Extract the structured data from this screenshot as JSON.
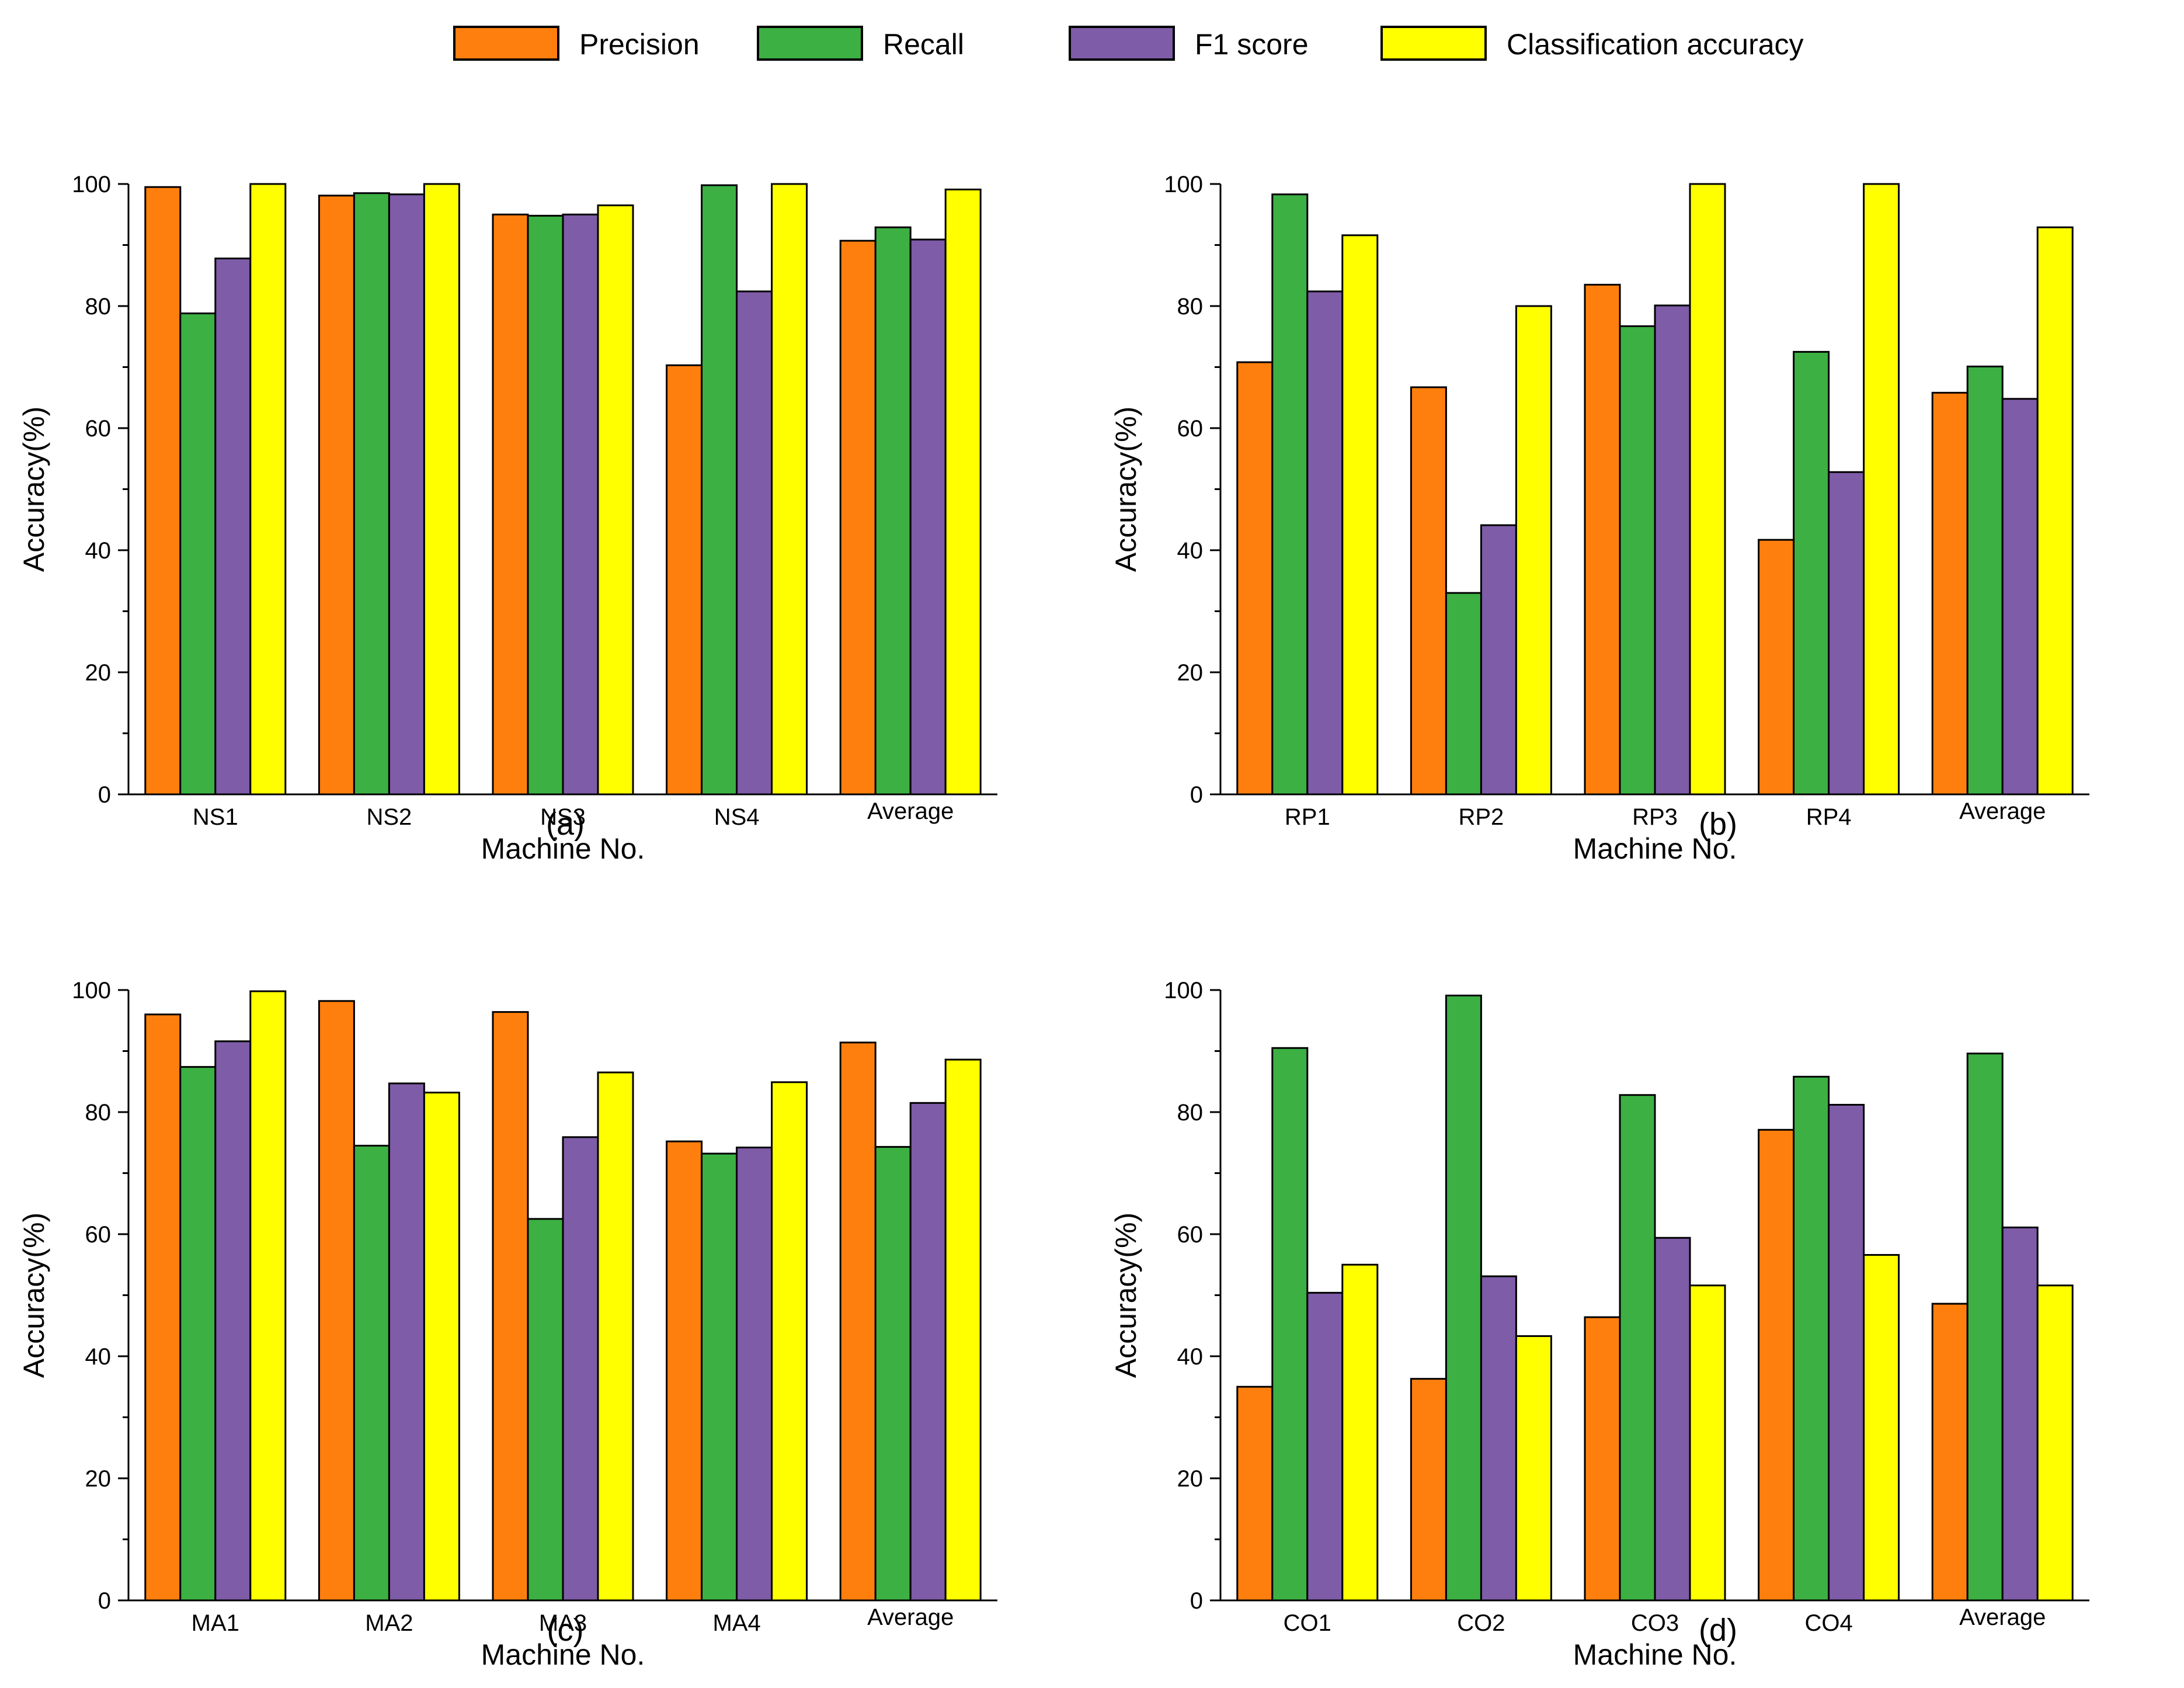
{
  "legend": {
    "items": [
      {
        "label": "Precision",
        "color": "#FF7F0E"
      },
      {
        "label": "Recall",
        "color": "#3CB043"
      },
      {
        "label": "F1 score",
        "color": "#7E5CA8"
      },
      {
        "label": "Classification accuracy",
        "color": "#FFFF00"
      }
    ]
  },
  "chart_data": [
    {
      "type": "bar",
      "caption": "(a)",
      "xlabel": "Machine No.",
      "ylabel": "Accuracy(%)",
      "ylim": [
        0,
        100
      ],
      "yticks": [
        "0",
        "20",
        "40",
        "60",
        "80",
        "100"
      ],
      "categories": [
        "NS1",
        "NS2",
        "NS3",
        "NS4",
        "Average"
      ],
      "series": [
        {
          "name": "Precision",
          "values": [
            99.5,
            98.1,
            95.0,
            70.3,
            90.7
          ]
        },
        {
          "name": "Recall",
          "values": [
            78.8,
            98.5,
            94.8,
            99.8,
            92.9
          ]
        },
        {
          "name": "F1 score",
          "values": [
            87.8,
            98.3,
            95.0,
            82.4,
            90.9
          ]
        },
        {
          "name": "Classification accuracy",
          "values": [
            100.0,
            100.0,
            96.5,
            100.0,
            99.1
          ]
        }
      ]
    },
    {
      "type": "bar",
      "caption": "(b)",
      "xlabel": "Machine No.",
      "ylabel": "Accuracy(%)",
      "ylim": [
        0,
        100
      ],
      "yticks": [
        "0",
        "20",
        "40",
        "60",
        "80",
        "100"
      ],
      "categories": [
        "RP1",
        "RP2",
        "RP3",
        "RP4",
        "Average"
      ],
      "series": [
        {
          "name": "Precision",
          "values": [
            70.8,
            66.7,
            83.5,
            41.7,
            65.8
          ]
        },
        {
          "name": "Recall",
          "values": [
            98.3,
            33.0,
            76.7,
            72.5,
            70.1
          ]
        },
        {
          "name": "F1 score",
          "values": [
            82.4,
            44.1,
            80.1,
            52.8,
            64.8
          ]
        },
        {
          "name": "Classification accuracy",
          "values": [
            91.6,
            80.0,
            100.0,
            100.0,
            92.9
          ]
        }
      ]
    },
    {
      "type": "bar",
      "caption": "(c)",
      "xlabel": "Machine No.",
      "ylabel": "Accuracy(%)",
      "ylim": [
        0,
        100
      ],
      "yticks": [
        "0",
        "20",
        "40",
        "60",
        "80",
        "100"
      ],
      "categories": [
        "MA1",
        "MA2",
        "MA3",
        "MA4",
        "Average"
      ],
      "series": [
        {
          "name": "Precision",
          "values": [
            96.0,
            98.2,
            96.4,
            75.2,
            91.4
          ]
        },
        {
          "name": "Recall",
          "values": [
            87.4,
            74.5,
            62.5,
            73.2,
            74.3
          ]
        },
        {
          "name": "F1 score",
          "values": [
            91.6,
            84.7,
            75.9,
            74.2,
            81.5
          ]
        },
        {
          "name": "Classification accuracy",
          "values": [
            99.8,
            83.2,
            86.5,
            84.9,
            88.6
          ]
        }
      ]
    },
    {
      "type": "bar",
      "caption": "(d)",
      "xlabel": "Machine No.",
      "ylabel": "Accuracy(%)",
      "ylim": [
        0,
        100
      ],
      "yticks": [
        "0",
        "20",
        "40",
        "60",
        "80",
        "100"
      ],
      "categories": [
        "CO1",
        "CO2",
        "CO3",
        "CO4",
        "Average"
      ],
      "series": [
        {
          "name": "Precision",
          "values": [
            35.0,
            36.3,
            46.4,
            77.1,
            48.6
          ]
        },
        {
          "name": "Recall",
          "values": [
            90.5,
            99.1,
            82.8,
            85.8,
            89.6
          ]
        },
        {
          "name": "F1 score",
          "values": [
            50.4,
            53.1,
            59.4,
            81.2,
            61.1
          ]
        },
        {
          "name": "Classification accuracy",
          "values": [
            55.0,
            43.3,
            51.6,
            56.6,
            51.6
          ]
        }
      ]
    }
  ]
}
